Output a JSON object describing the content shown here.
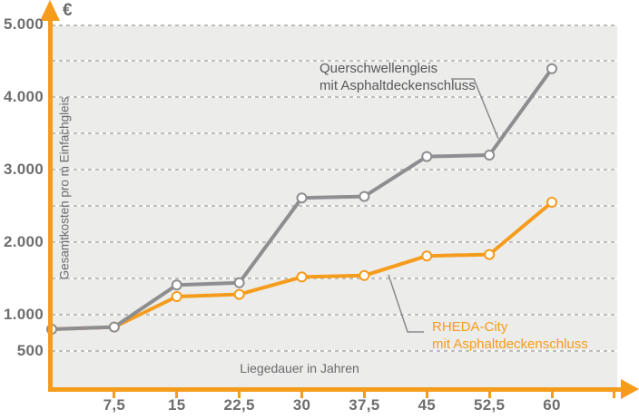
{
  "page": {
    "background": "#ffffff",
    "plot_background": "#ECECEB",
    "axis_color": "#F59C1C",
    "grid_color": "#BDBDBD",
    "tick_label_color": "#6E6E70",
    "axis_title_color": "#6A6A6C"
  },
  "chart_data": {
    "type": "line",
    "title": "",
    "xlabel": "Liegedauer in Jahren",
    "ylabel": "Gesamtkosten pro m Einfachgleis",
    "y_unit": "€",
    "x": [
      0,
      7.5,
      15,
      22.5,
      30,
      37.5,
      45,
      52.5,
      60
    ],
    "series": [
      {
        "name": "RHEDA-City mit Asphaltdeckenschluss",
        "color": "#F59C1C",
        "values": [
          800,
          830,
          1250,
          1280,
          1520,
          1540,
          1810,
          1830,
          2550
        ]
      },
      {
        "name": "Querschwellengleis mit Asphaltdeckenschluss",
        "color": "#8E8E90",
        "values": [
          800,
          830,
          1410,
          1440,
          2610,
          2630,
          3180,
          3200,
          4390
        ]
      }
    ],
    "marker": {
      "fill": "#FFFFFF",
      "radius": 5,
      "ring_width": 2
    },
    "ylim": [
      0,
      5000
    ],
    "xlim": [
      0,
      67.5
    ],
    "grid": {
      "interval": 500,
      "style": "dashed",
      "color": "#BDBDBD"
    },
    "legend_position": "inline-annotations",
    "y_ticks": [
      {
        "value": 5000,
        "label": "5.000"
      },
      {
        "value": 4000,
        "label": "4.000"
      },
      {
        "value": 3000,
        "label": "3.000"
      },
      {
        "value": 2000,
        "label": "2.000"
      },
      {
        "value": 1000,
        "label": "1.000"
      },
      {
        "value": 500,
        "label": "500"
      }
    ],
    "x_ticks": [
      {
        "value": 7.5,
        "label": "7,5"
      },
      {
        "value": 15,
        "label": "15"
      },
      {
        "value": 22.5,
        "label": "22,5"
      },
      {
        "value": 30,
        "label": "30"
      },
      {
        "value": 37.5,
        "label": "37,5"
      },
      {
        "value": 45,
        "label": "45"
      },
      {
        "value": 52.5,
        "label": "52,5"
      },
      {
        "value": 60,
        "label": "60"
      },
      {
        "value": 67.5,
        "label": ""
      }
    ],
    "annotations": [
      {
        "lines": [
          "Querschwellengleis",
          "mit Asphaltdeckenschluss"
        ],
        "color": "#58585A",
        "label_x": 352,
        "label_y": 66,
        "callout_points": [
          [
            440,
            60
          ],
          [
            465,
            60
          ],
          [
            492,
            126
          ]
        ],
        "callout_color": "#8A8A8C"
      },
      {
        "lines": [
          "RHEDA-City",
          "mit Asphaltdeckenschluss"
        ],
        "color": "#F59C1C",
        "label_x": 476,
        "label_y": 351,
        "callout_points": [
          [
            371,
            276
          ],
          [
            392,
            339
          ],
          [
            410,
            339
          ]
        ],
        "callout_color": "#8A8A8C"
      }
    ]
  }
}
